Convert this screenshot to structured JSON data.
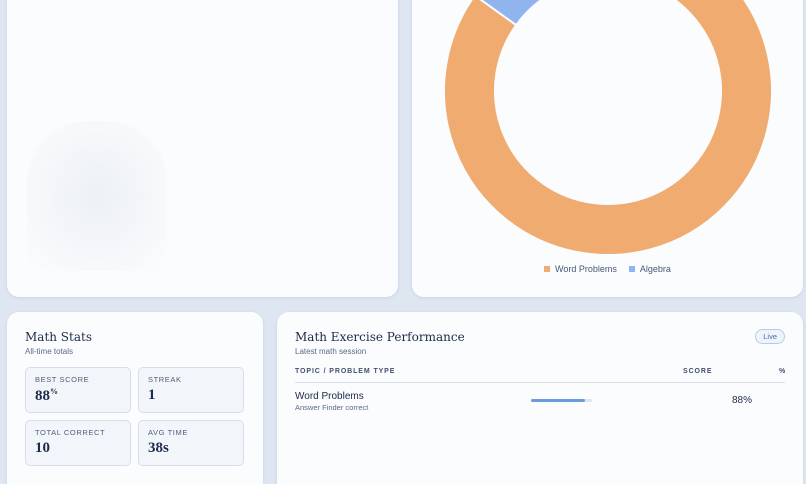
{
  "donut": {
    "legend": [
      {
        "label": "Word Problems",
        "color": "#f0ab70"
      },
      {
        "label": "Algebra",
        "color": "#8fb4ee"
      }
    ],
    "slices": [
      {
        "label": "Word Problems",
        "value": 95,
        "color": "#f0ab70"
      },
      {
        "label": "Algebra",
        "value": 5,
        "color": "#8fb4ee"
      }
    ]
  },
  "stats": {
    "title": "Math Stats",
    "subtitle": "All-time totals",
    "best_score_label": "BEST SCORE",
    "best_score_value": "88",
    "best_score_unit": "%",
    "streak_label": "STREAK",
    "streak_value": "1",
    "total_correct_label": "TOTAL CORRECT",
    "total_correct_value": "10",
    "avg_time_label": "AVG TIME",
    "avg_time_value": "38s"
  },
  "performance": {
    "title": "Math Exercise Performance",
    "subtitle": "Latest math session",
    "badge": "Live",
    "columns": {
      "topic": "TOPIC / PROBLEM TYPE",
      "score": "SCORE",
      "pct": "%"
    },
    "rows": [
      {
        "title": "Word Problems",
        "subtitle": "Answer Finder correct",
        "score_fraction": 0.88,
        "pct": "88%"
      }
    ]
  }
}
